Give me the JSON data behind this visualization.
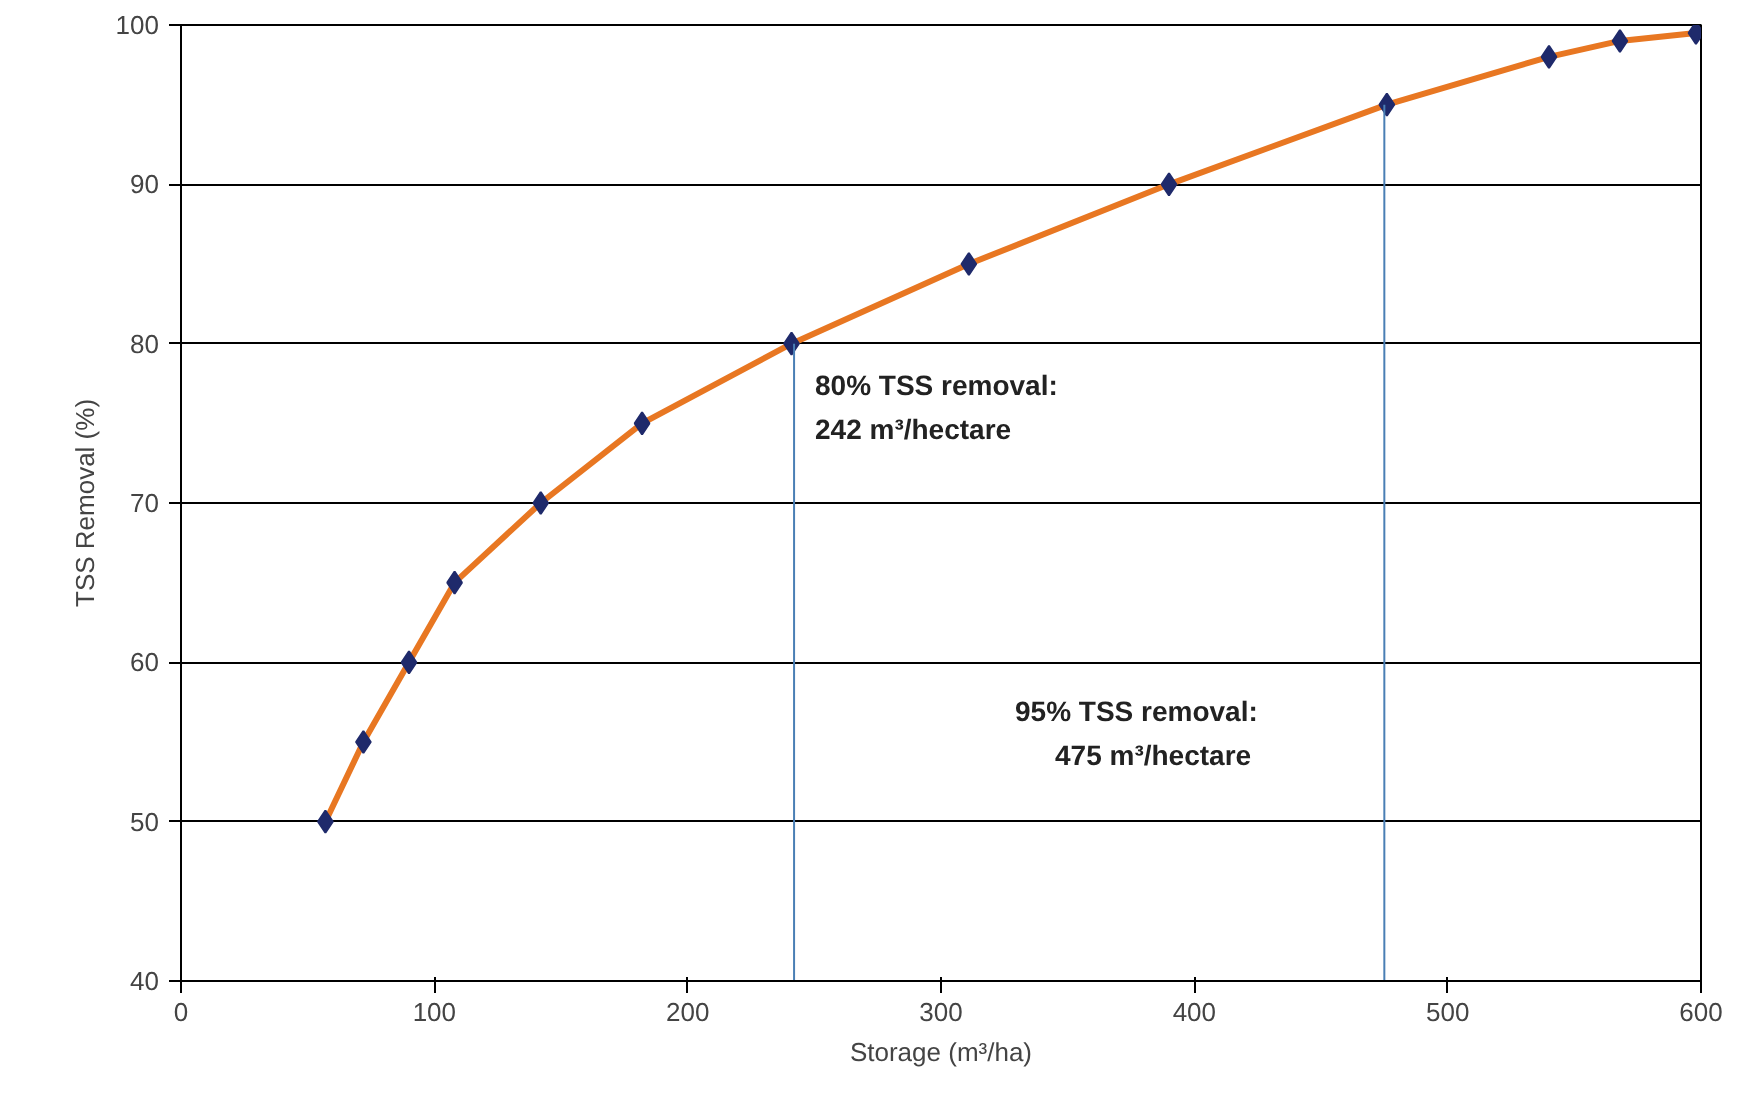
{
  "chart_data": {
    "type": "line",
    "xlabel": "Storage (m³/ha)",
    "ylabel": "TSS Removal (%)",
    "xlim": [
      0,
      600
    ],
    "ylim": [
      40,
      100
    ],
    "xticks": [
      0,
      100,
      200,
      300,
      400,
      500,
      600
    ],
    "yticks": [
      40,
      50,
      60,
      70,
      80,
      90,
      100
    ],
    "grid": "y",
    "marker": "diamond",
    "series": [
      {
        "marker": "none",
        "color": "#e87722",
        "x": [
          57,
          72,
          90,
          108,
          142,
          182,
          241,
          311,
          390,
          476,
          540,
          568,
          598
        ],
        "values": [
          50,
          55,
          60,
          65,
          70,
          75,
          80,
          85,
          90,
          95,
          98,
          99,
          99.5
        ]
      },
      {
        "type": "scatter",
        "color": "#1f2a6b",
        "x": [
          57,
          72,
          90,
          108,
          142,
          182,
          241,
          311,
          390,
          476,
          540,
          568,
          598
        ],
        "values": [
          50,
          55,
          60,
          65,
          70,
          75,
          80,
          85,
          90,
          95,
          98,
          99,
          99.5
        ]
      },
      {
        "marker": "none",
        "color": "#4a7fb5",
        "x": [
          242,
          242
        ],
        "values": [
          40,
          80
        ]
      },
      {
        "marker": "none",
        "color": "#4a7fb5",
        "x": [
          475,
          475
        ],
        "values": [
          40,
          95
        ]
      }
    ],
    "annotations": [
      "80% TSS removal:\n242 m³/hectare",
      "95% TSS removal:\n475 m³/hectare"
    ]
  }
}
